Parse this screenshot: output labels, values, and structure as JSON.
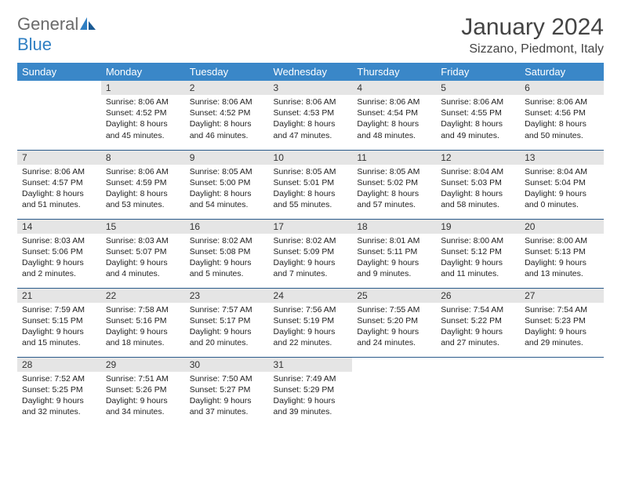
{
  "logo": {
    "textGray": "General",
    "textBlue": "Blue"
  },
  "title": "January 2024",
  "location": "Sizzano, Piedmont, Italy",
  "weekdays": [
    "Sunday",
    "Monday",
    "Tuesday",
    "Wednesday",
    "Thursday",
    "Friday",
    "Saturday"
  ],
  "colors": {
    "headerBg": "#3a87c8",
    "rowBorder": "#2a5a8a",
    "dayBg": "#e5e5e5",
    "logoGray": "#6a6a6a",
    "logoBlue": "#2f7fc3"
  },
  "weeks": [
    [
      null,
      {
        "n": "1",
        "sr": "Sunrise: 8:06 AM",
        "ss": "Sunset: 4:52 PM",
        "d1": "Daylight: 8 hours",
        "d2": "and 45 minutes."
      },
      {
        "n": "2",
        "sr": "Sunrise: 8:06 AM",
        "ss": "Sunset: 4:52 PM",
        "d1": "Daylight: 8 hours",
        "d2": "and 46 minutes."
      },
      {
        "n": "3",
        "sr": "Sunrise: 8:06 AM",
        "ss": "Sunset: 4:53 PM",
        "d1": "Daylight: 8 hours",
        "d2": "and 47 minutes."
      },
      {
        "n": "4",
        "sr": "Sunrise: 8:06 AM",
        "ss": "Sunset: 4:54 PM",
        "d1": "Daylight: 8 hours",
        "d2": "and 48 minutes."
      },
      {
        "n": "5",
        "sr": "Sunrise: 8:06 AM",
        "ss": "Sunset: 4:55 PM",
        "d1": "Daylight: 8 hours",
        "d2": "and 49 minutes."
      },
      {
        "n": "6",
        "sr": "Sunrise: 8:06 AM",
        "ss": "Sunset: 4:56 PM",
        "d1": "Daylight: 8 hours",
        "d2": "and 50 minutes."
      }
    ],
    [
      {
        "n": "7",
        "sr": "Sunrise: 8:06 AM",
        "ss": "Sunset: 4:57 PM",
        "d1": "Daylight: 8 hours",
        "d2": "and 51 minutes."
      },
      {
        "n": "8",
        "sr": "Sunrise: 8:06 AM",
        "ss": "Sunset: 4:59 PM",
        "d1": "Daylight: 8 hours",
        "d2": "and 53 minutes."
      },
      {
        "n": "9",
        "sr": "Sunrise: 8:05 AM",
        "ss": "Sunset: 5:00 PM",
        "d1": "Daylight: 8 hours",
        "d2": "and 54 minutes."
      },
      {
        "n": "10",
        "sr": "Sunrise: 8:05 AM",
        "ss": "Sunset: 5:01 PM",
        "d1": "Daylight: 8 hours",
        "d2": "and 55 minutes."
      },
      {
        "n": "11",
        "sr": "Sunrise: 8:05 AM",
        "ss": "Sunset: 5:02 PM",
        "d1": "Daylight: 8 hours",
        "d2": "and 57 minutes."
      },
      {
        "n": "12",
        "sr": "Sunrise: 8:04 AM",
        "ss": "Sunset: 5:03 PM",
        "d1": "Daylight: 8 hours",
        "d2": "and 58 minutes."
      },
      {
        "n": "13",
        "sr": "Sunrise: 8:04 AM",
        "ss": "Sunset: 5:04 PM",
        "d1": "Daylight: 9 hours",
        "d2": "and 0 minutes."
      }
    ],
    [
      {
        "n": "14",
        "sr": "Sunrise: 8:03 AM",
        "ss": "Sunset: 5:06 PM",
        "d1": "Daylight: 9 hours",
        "d2": "and 2 minutes."
      },
      {
        "n": "15",
        "sr": "Sunrise: 8:03 AM",
        "ss": "Sunset: 5:07 PM",
        "d1": "Daylight: 9 hours",
        "d2": "and 4 minutes."
      },
      {
        "n": "16",
        "sr": "Sunrise: 8:02 AM",
        "ss": "Sunset: 5:08 PM",
        "d1": "Daylight: 9 hours",
        "d2": "and 5 minutes."
      },
      {
        "n": "17",
        "sr": "Sunrise: 8:02 AM",
        "ss": "Sunset: 5:09 PM",
        "d1": "Daylight: 9 hours",
        "d2": "and 7 minutes."
      },
      {
        "n": "18",
        "sr": "Sunrise: 8:01 AM",
        "ss": "Sunset: 5:11 PM",
        "d1": "Daylight: 9 hours",
        "d2": "and 9 minutes."
      },
      {
        "n": "19",
        "sr": "Sunrise: 8:00 AM",
        "ss": "Sunset: 5:12 PM",
        "d1": "Daylight: 9 hours",
        "d2": "and 11 minutes."
      },
      {
        "n": "20",
        "sr": "Sunrise: 8:00 AM",
        "ss": "Sunset: 5:13 PM",
        "d1": "Daylight: 9 hours",
        "d2": "and 13 minutes."
      }
    ],
    [
      {
        "n": "21",
        "sr": "Sunrise: 7:59 AM",
        "ss": "Sunset: 5:15 PM",
        "d1": "Daylight: 9 hours",
        "d2": "and 15 minutes."
      },
      {
        "n": "22",
        "sr": "Sunrise: 7:58 AM",
        "ss": "Sunset: 5:16 PM",
        "d1": "Daylight: 9 hours",
        "d2": "and 18 minutes."
      },
      {
        "n": "23",
        "sr": "Sunrise: 7:57 AM",
        "ss": "Sunset: 5:17 PM",
        "d1": "Daylight: 9 hours",
        "d2": "and 20 minutes."
      },
      {
        "n": "24",
        "sr": "Sunrise: 7:56 AM",
        "ss": "Sunset: 5:19 PM",
        "d1": "Daylight: 9 hours",
        "d2": "and 22 minutes."
      },
      {
        "n": "25",
        "sr": "Sunrise: 7:55 AM",
        "ss": "Sunset: 5:20 PM",
        "d1": "Daylight: 9 hours",
        "d2": "and 24 minutes."
      },
      {
        "n": "26",
        "sr": "Sunrise: 7:54 AM",
        "ss": "Sunset: 5:22 PM",
        "d1": "Daylight: 9 hours",
        "d2": "and 27 minutes."
      },
      {
        "n": "27",
        "sr": "Sunrise: 7:54 AM",
        "ss": "Sunset: 5:23 PM",
        "d1": "Daylight: 9 hours",
        "d2": "and 29 minutes."
      }
    ],
    [
      {
        "n": "28",
        "sr": "Sunrise: 7:52 AM",
        "ss": "Sunset: 5:25 PM",
        "d1": "Daylight: 9 hours",
        "d2": "and 32 minutes."
      },
      {
        "n": "29",
        "sr": "Sunrise: 7:51 AM",
        "ss": "Sunset: 5:26 PM",
        "d1": "Daylight: 9 hours",
        "d2": "and 34 minutes."
      },
      {
        "n": "30",
        "sr": "Sunrise: 7:50 AM",
        "ss": "Sunset: 5:27 PM",
        "d1": "Daylight: 9 hours",
        "d2": "and 37 minutes."
      },
      {
        "n": "31",
        "sr": "Sunrise: 7:49 AM",
        "ss": "Sunset: 5:29 PM",
        "d1": "Daylight: 9 hours",
        "d2": "and 39 minutes."
      },
      null,
      null,
      null
    ]
  ]
}
